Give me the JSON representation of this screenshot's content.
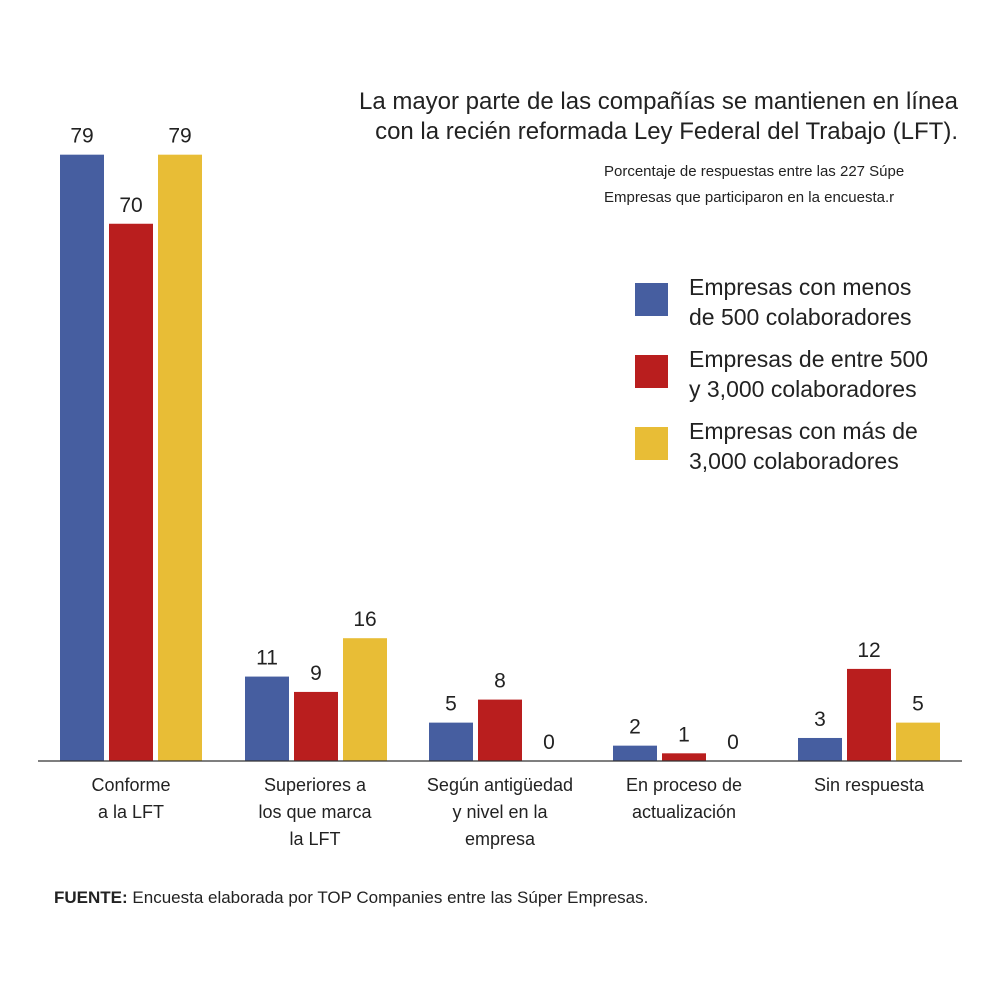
{
  "chart_data": {
    "type": "bar",
    "title_lines": [
      "La mayor parte de las compañías se mantienen en línea",
      "con la recién reformada Ley Federal del Trabajo (LFT)."
    ],
    "subtitle_lines": [
      "Porcentaje de respuestas entre las 227 Súpe",
      "Empresas que participaron en la encuesta.r"
    ],
    "categories": [
      [
        "Conforme",
        "a la LFT"
      ],
      [
        "Superiores a",
        "los que marca",
        "la LFT"
      ],
      [
        "Según antigüedad",
        "y nivel en la",
        "empresa"
      ],
      [
        "En proceso de",
        "actualización"
      ],
      [
        "Sin respuesta"
      ]
    ],
    "series": [
      {
        "name_lines": [
          "Empresas con menos",
          "de 500 colaboradores"
        ],
        "color": "#465ea0",
        "values": [
          79,
          11,
          5,
          2,
          3
        ]
      },
      {
        "name_lines": [
          "Empresas de entre 500",
          "y 3,000 colaboradores"
        ],
        "color": "#b91e1e",
        "values": [
          70,
          9,
          8,
          1,
          12
        ]
      },
      {
        "name_lines": [
          "Empresas con más de",
          "3,000 colaboradores"
        ],
        "color": "#e8bd36",
        "values": [
          79,
          16,
          0,
          0,
          5
        ]
      }
    ],
    "ylim": [
      0,
      80
    ],
    "legend_position": "right",
    "grid": false
  },
  "source": {
    "label": "FUENTE:",
    "text": " Encuesta elaborada por TOP Companies entre las Súper Empresas."
  }
}
